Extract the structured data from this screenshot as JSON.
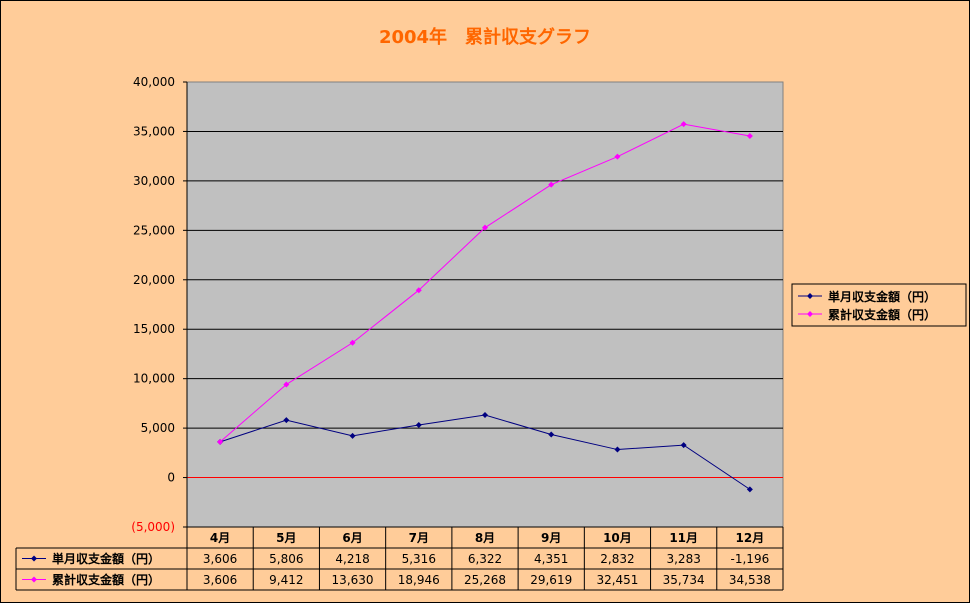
{
  "chart_data": {
    "type": "line",
    "title": "2004年　累計収支グラフ",
    "categories": [
      "4月",
      "5月",
      "6月",
      "7月",
      "8月",
      "9月",
      "10月",
      "11月",
      "12月"
    ],
    "ylim": [
      -5000,
      40000
    ],
    "yticks": [
      40000,
      35000,
      30000,
      25000,
      20000,
      15000,
      10000,
      5000,
      0,
      -5000
    ],
    "ytick_labels": [
      "40,000",
      "35,000",
      "30,000",
      "25,000",
      "20,000",
      "15,000",
      "10,000",
      "5,000",
      "0",
      "(5,000)"
    ],
    "grid": true,
    "legend_position": "right",
    "series": [
      {
        "name": "単月収支金額（円）",
        "color": "#000080",
        "values": [
          3606,
          5806,
          4218,
          5316,
          6322,
          4351,
          2832,
          3283,
          -1196
        ],
        "labels": [
          "3,606",
          "5,806",
          "4,218",
          "5,316",
          "6,322",
          "4,351",
          "2,832",
          "3,283",
          "-1,196"
        ]
      },
      {
        "name": "累計収支金額（円）",
        "color": "#ff00ff",
        "values": [
          3606,
          9412,
          13630,
          18946,
          25268,
          29619,
          32451,
          35734,
          34538
        ],
        "labels": [
          "3,606",
          "9,412",
          "13,630",
          "18,946",
          "25,268",
          "29,619",
          "32,451",
          "35,734",
          "34,538"
        ]
      }
    ],
    "colors": {
      "chart_bg": "#ffcc99",
      "plot_bg": "#c0c0c0",
      "title": "#ff6600",
      "zero_line": "#ff0000",
      "negative_tick": "#ff0000"
    }
  }
}
